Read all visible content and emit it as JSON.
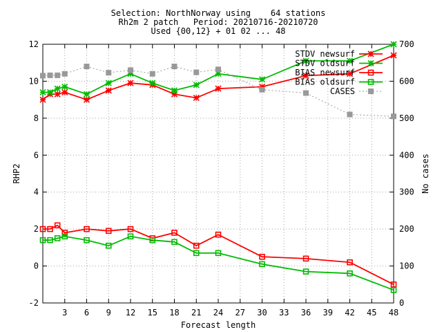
{
  "chart_data": {
    "type": "line",
    "title_lines": [
      "Selection: NorthNorway using    64 stations",
      "Rh2m 2 patch   Period: 20210716-20210720",
      "Used {00,12} + 01 02 ... 48"
    ],
    "xlabel": "Forecast length",
    "ylabel": "RHP2",
    "y2label": "No cases",
    "xlim": [
      0,
      48
    ],
    "ylim": [
      -2,
      12
    ],
    "y2lim": [
      0,
      700
    ],
    "xticks": [
      3,
      6,
      9,
      12,
      15,
      18,
      21,
      24,
      27,
      30,
      33,
      36,
      39,
      42,
      45,
      48
    ],
    "yticks": [
      -2,
      0,
      2,
      4,
      6,
      8,
      10,
      12
    ],
    "y2ticks": [
      0,
      100,
      200,
      300,
      400,
      500,
      600,
      700
    ],
    "grid": true,
    "legend_position": "top-right",
    "series": [
      {
        "name": "STDV newsurf",
        "color": "#ff0000",
        "marker": "star",
        "axis": "left",
        "x": [
          0,
          1,
          2,
          3,
          6,
          9,
          12,
          15,
          18,
          21,
          24,
          30,
          36,
          42,
          48
        ],
        "y": [
          9.0,
          9.3,
          9.3,
          9.4,
          9.0,
          9.5,
          9.9,
          9.8,
          9.3,
          9.1,
          9.6,
          9.7,
          10.3,
          10.4,
          11.4
        ]
      },
      {
        "name": "STDV oldsurf",
        "color": "#00bb00",
        "marker": "star",
        "axis": "left",
        "x": [
          0,
          1,
          2,
          3,
          6,
          9,
          12,
          15,
          18,
          21,
          24,
          30,
          36,
          42,
          48
        ],
        "y": [
          9.4,
          9.4,
          9.6,
          9.7,
          9.3,
          9.9,
          10.4,
          9.9,
          9.5,
          9.8,
          10.4,
          10.1,
          11.1,
          11.1,
          12.0
        ]
      },
      {
        "name": "BIAS newsurf",
        "color": "#ff0000",
        "marker": "square",
        "axis": "left",
        "x": [
          0,
          1,
          2,
          3,
          6,
          9,
          12,
          15,
          18,
          21,
          24,
          30,
          36,
          42,
          48
        ],
        "y": [
          2.0,
          2.0,
          2.2,
          1.8,
          2.0,
          1.9,
          2.0,
          1.5,
          1.8,
          1.1,
          1.7,
          0.5,
          0.4,
          0.2,
          -1.0
        ]
      },
      {
        "name": "BIAS oldsurf",
        "color": "#00bb00",
        "marker": "square",
        "axis": "left",
        "x": [
          0,
          1,
          2,
          3,
          6,
          9,
          12,
          15,
          18,
          21,
          24,
          30,
          36,
          42,
          48
        ],
        "y": [
          1.4,
          1.4,
          1.5,
          1.6,
          1.4,
          1.1,
          1.6,
          1.4,
          1.3,
          0.7,
          0.7,
          0.1,
          -0.3,
          -0.4,
          -1.3
        ]
      },
      {
        "name": "CASES",
        "color": "#999999",
        "marker": "filled-square",
        "dashed": true,
        "axis": "right",
        "x": [
          0,
          1,
          2,
          3,
          6,
          9,
          12,
          15,
          18,
          21,
          24,
          30,
          36,
          42,
          48
        ],
        "y": [
          615,
          616,
          616,
          620,
          640,
          623,
          630,
          620,
          640,
          624,
          632,
          577,
          568,
          510,
          505
        ]
      }
    ]
  }
}
